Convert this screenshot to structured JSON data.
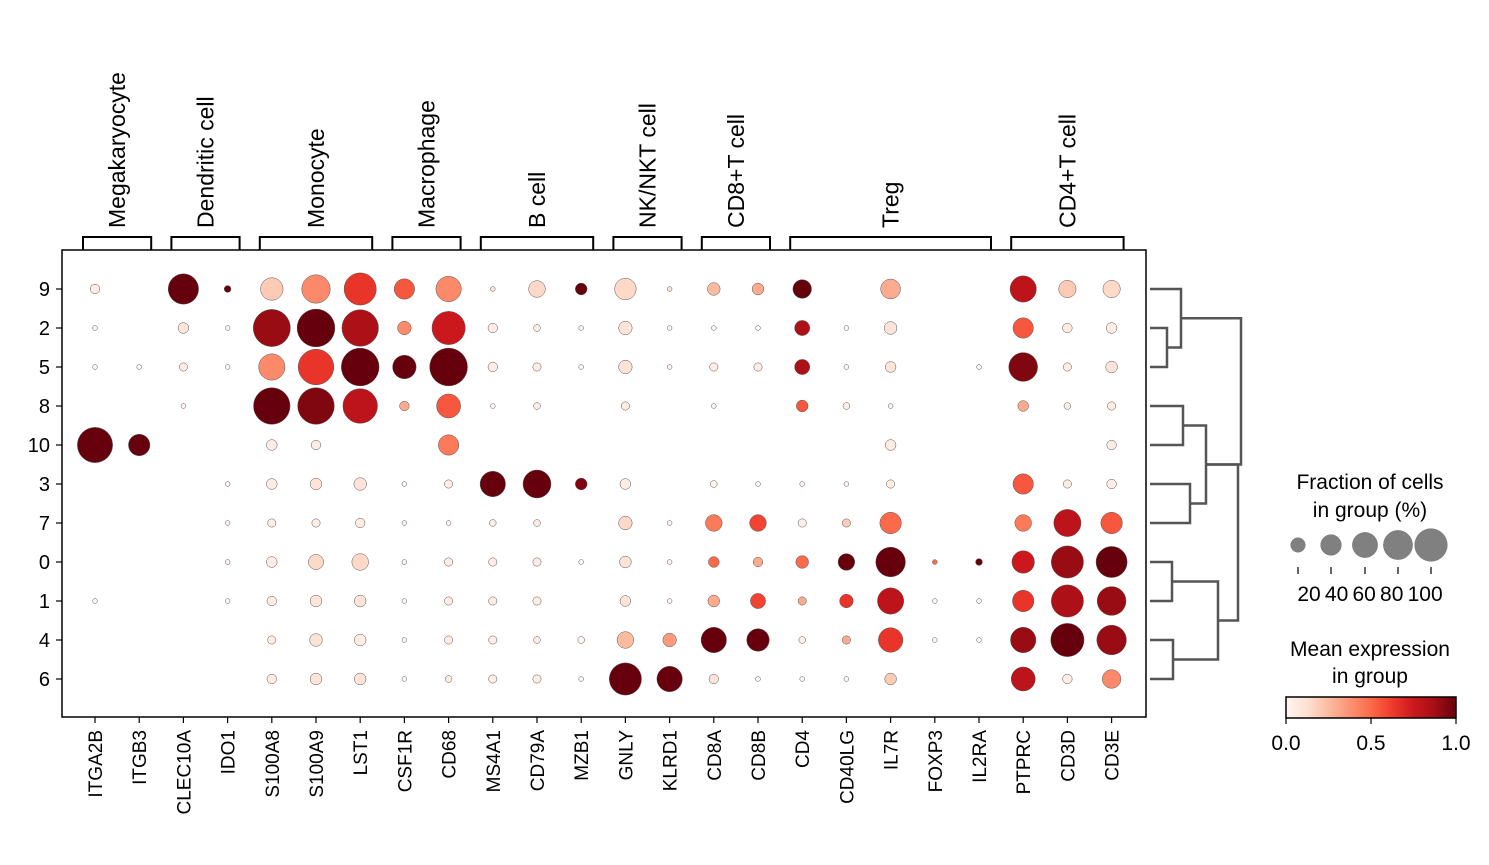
{
  "chart_data": {
    "type": "dotplot",
    "title": "",
    "colormap": "Reds",
    "genes": [
      "ITGA2B",
      "ITGB3",
      "CLEC10A",
      "IDO1",
      "S100A8",
      "S100A9",
      "LST1",
      "CSF1R",
      "CD68",
      "MS4A1",
      "CD79A",
      "MZB1",
      "GNLY",
      "KLRD1",
      "CD8A",
      "CD8B",
      "CD4",
      "CD40LG",
      "IL7R",
      "FOXP3",
      "IL2RA",
      "PTPRC",
      "CD3D",
      "CD3E"
    ],
    "gene_groups": [
      {
        "label": "Megakaryocyte",
        "start": 0,
        "end": 1
      },
      {
        "label": "Dendritic cell",
        "start": 2,
        "end": 3
      },
      {
        "label": "Monocyte",
        "start": 4,
        "end": 6
      },
      {
        "label": "Macrophage",
        "start": 7,
        "end": 8
      },
      {
        "label": "B cell",
        "start": 9,
        "end": 11
      },
      {
        "label": "NK/NKT cell",
        "start": 12,
        "end": 13
      },
      {
        "label": "CD8+T cell",
        "start": 14,
        "end": 15
      },
      {
        "label": "Treg",
        "start": 16,
        "end": 20
      },
      {
        "label": "CD4+T cell",
        "start": 21,
        "end": 23
      }
    ],
    "clusters": [
      "9",
      "2",
      "5",
      "8",
      "10",
      "3",
      "7",
      "0",
      "1",
      "4",
      "6"
    ],
    "fraction_pct": [
      [
        4,
        0,
        40,
        2,
        22,
        35,
        45,
        18,
        28,
        1,
        12,
        6,
        20,
        1,
        7,
        6,
        15,
        0,
        17,
        0,
        0,
        30,
        13,
        13
      ],
      [
        1,
        0,
        5,
        1,
        60,
        62,
        58,
        8,
        48,
        4,
        2,
        1,
        8,
        1,
        1,
        1,
        10,
        1,
        7,
        0,
        0,
        18,
        4,
        5
      ],
      [
        1,
        1,
        3,
        1,
        30,
        55,
        62,
        24,
        62,
        4,
        3,
        1,
        8,
        1,
        3,
        3,
        10,
        1,
        5,
        0,
        1,
        36,
        3,
        6
      ],
      [
        0,
        0,
        1,
        0,
        58,
        58,
        52,
        4,
        25,
        1,
        2,
        0,
        3,
        0,
        1,
        0,
        6,
        2,
        1,
        0,
        0,
        5,
        2,
        3
      ],
      [
        54,
        20,
        0,
        0,
        5,
        4,
        0,
        0,
        18,
        0,
        0,
        0,
        0,
        0,
        0,
        0,
        0,
        0,
        5,
        0,
        0,
        0,
        0,
        4
      ],
      [
        0,
        0,
        0,
        1,
        5,
        6,
        7,
        1,
        3,
        28,
        34,
        6,
        5,
        0,
        2,
        1,
        1,
        1,
        3,
        0,
        0,
        18,
        3,
        4
      ],
      [
        0,
        0,
        0,
        1,
        3,
        3,
        4,
        1,
        1,
        2,
        2,
        0,
        8,
        1,
        12,
        12,
        3,
        3,
        20,
        0,
        0,
        12,
        32,
        20
      ],
      [
        0,
        0,
        0,
        1,
        5,
        10,
        12,
        1,
        3,
        3,
        3,
        1,
        6,
        1,
        5,
        4,
        7,
        12,
        38,
        1,
        2,
        22,
        45,
        42
      ],
      [
        1,
        0,
        0,
        1,
        4,
        6,
        6,
        1,
        3,
        3,
        3,
        0,
        5,
        1,
        6,
        10,
        3,
        8,
        30,
        1,
        1,
        20,
        45,
        36
      ],
      [
        0,
        0,
        0,
        0,
        3,
        7,
        6,
        1,
        3,
        3,
        2,
        2,
        12,
        8,
        28,
        22,
        2,
        3,
        26,
        1,
        1,
        28,
        48,
        38
      ],
      [
        0,
        0,
        0,
        0,
        4,
        6,
        6,
        1,
        2,
        3,
        3,
        1,
        45,
        28,
        4,
        1,
        1,
        1,
        6,
        0,
        0,
        25,
        4,
        15
      ]
    ],
    "mean_expression": [
      [
        0.05,
        0,
        1.0,
        1.0,
        0.2,
        0.4,
        0.65,
        0.55,
        0.4,
        0.1,
        0.15,
        1.0,
        0.15,
        0.1,
        0.25,
        0.3,
        1.0,
        0,
        0.3,
        0,
        0,
        0.8,
        0.2,
        0.15
      ],
      [
        0,
        0,
        0.1,
        0,
        0.9,
        1.0,
        0.85,
        0.4,
        0.75,
        0.05,
        0.05,
        0,
        0.1,
        0,
        0,
        0,
        0.85,
        0,
        0.1,
        0,
        0,
        0.55,
        0.05,
        0.05
      ],
      [
        0,
        0,
        0.05,
        0,
        0.4,
        0.65,
        1.0,
        1.0,
        1.0,
        0.05,
        0.05,
        0,
        0.1,
        0,
        0.05,
        0.05,
        0.85,
        0,
        0.1,
        0,
        0,
        0.95,
        0.05,
        0.1
      ],
      [
        0,
        0,
        0,
        0,
        1.0,
        0.95,
        0.8,
        0.3,
        0.55,
        0,
        0.05,
        0,
        0.05,
        0,
        0,
        0,
        0.55,
        0.05,
        0,
        0,
        0,
        0.3,
        0.05,
        0.05
      ],
      [
        1.0,
        1.0,
        0,
        0,
        0.05,
        0.05,
        0,
        0,
        0.45,
        0,
        0,
        0,
        0,
        0,
        0,
        0,
        0,
        0,
        0.05,
        0,
        0,
        0,
        0,
        0.05
      ],
      [
        0,
        0,
        0,
        0,
        0.05,
        0.1,
        0.1,
        0,
        0.05,
        1.0,
        1.0,
        0.95,
        0.05,
        0,
        0,
        0,
        0,
        0,
        0.05,
        0,
        0,
        0.55,
        0.05,
        0.05
      ],
      [
        0,
        0,
        0,
        0,
        0.05,
        0.05,
        0.05,
        0,
        0,
        0.05,
        0.05,
        0,
        0.15,
        0,
        0.45,
        0.6,
        0.05,
        0.2,
        0.5,
        0,
        0,
        0.45,
        0.8,
        0.55
      ],
      [
        0,
        0,
        0,
        0,
        0.05,
        0.15,
        0.15,
        0,
        0.05,
        0.05,
        0.05,
        0,
        0.1,
        0,
        0.5,
        0.3,
        0.5,
        1.0,
        1.0,
        0.5,
        1.0,
        0.75,
        0.9,
        1.0
      ],
      [
        0,
        0,
        0,
        0,
        0.05,
        0.1,
        0.1,
        0,
        0.05,
        0.05,
        0.05,
        0,
        0.1,
        0,
        0.3,
        0.6,
        0.3,
        0.65,
        0.8,
        0,
        0,
        0.65,
        0.85,
        0.9
      ],
      [
        0,
        0,
        0,
        0,
        0.05,
        0.1,
        0.05,
        0,
        0.05,
        0.05,
        0.05,
        0,
        0.25,
        0.35,
        1.0,
        1.0,
        0.05,
        0.3,
        0.65,
        0,
        0,
        0.9,
        1.0,
        0.9
      ],
      [
        0,
        0,
        0,
        0,
        0.05,
        0.1,
        0.1,
        0,
        0.05,
        0.05,
        0.05,
        0,
        1.0,
        1.0,
        0.1,
        0,
        0,
        0,
        0.2,
        0,
        0,
        0.8,
        0.05,
        0.4
      ]
    ],
    "dendrogram": "((9,(2,5)),((8,10),(3,7))),((0,1),(4,6))",
    "size_legend": {
      "title": [
        "Fraction of cells",
        "in group (%)"
      ],
      "values": [
        20,
        40,
        60,
        80,
        100
      ],
      "labels": [
        "20",
        "40",
        "60",
        "80",
        "100"
      ]
    },
    "color_legend": {
      "title": [
        "Mean expression",
        "in group"
      ],
      "range": [
        0.0,
        1.0
      ],
      "ticks": [
        "0.0",
        "0.5",
        "1.0"
      ]
    },
    "colors": {
      "dendrogram": "#555555",
      "dot_edge": "#555555",
      "size_legend_dot": "#808080"
    }
  }
}
